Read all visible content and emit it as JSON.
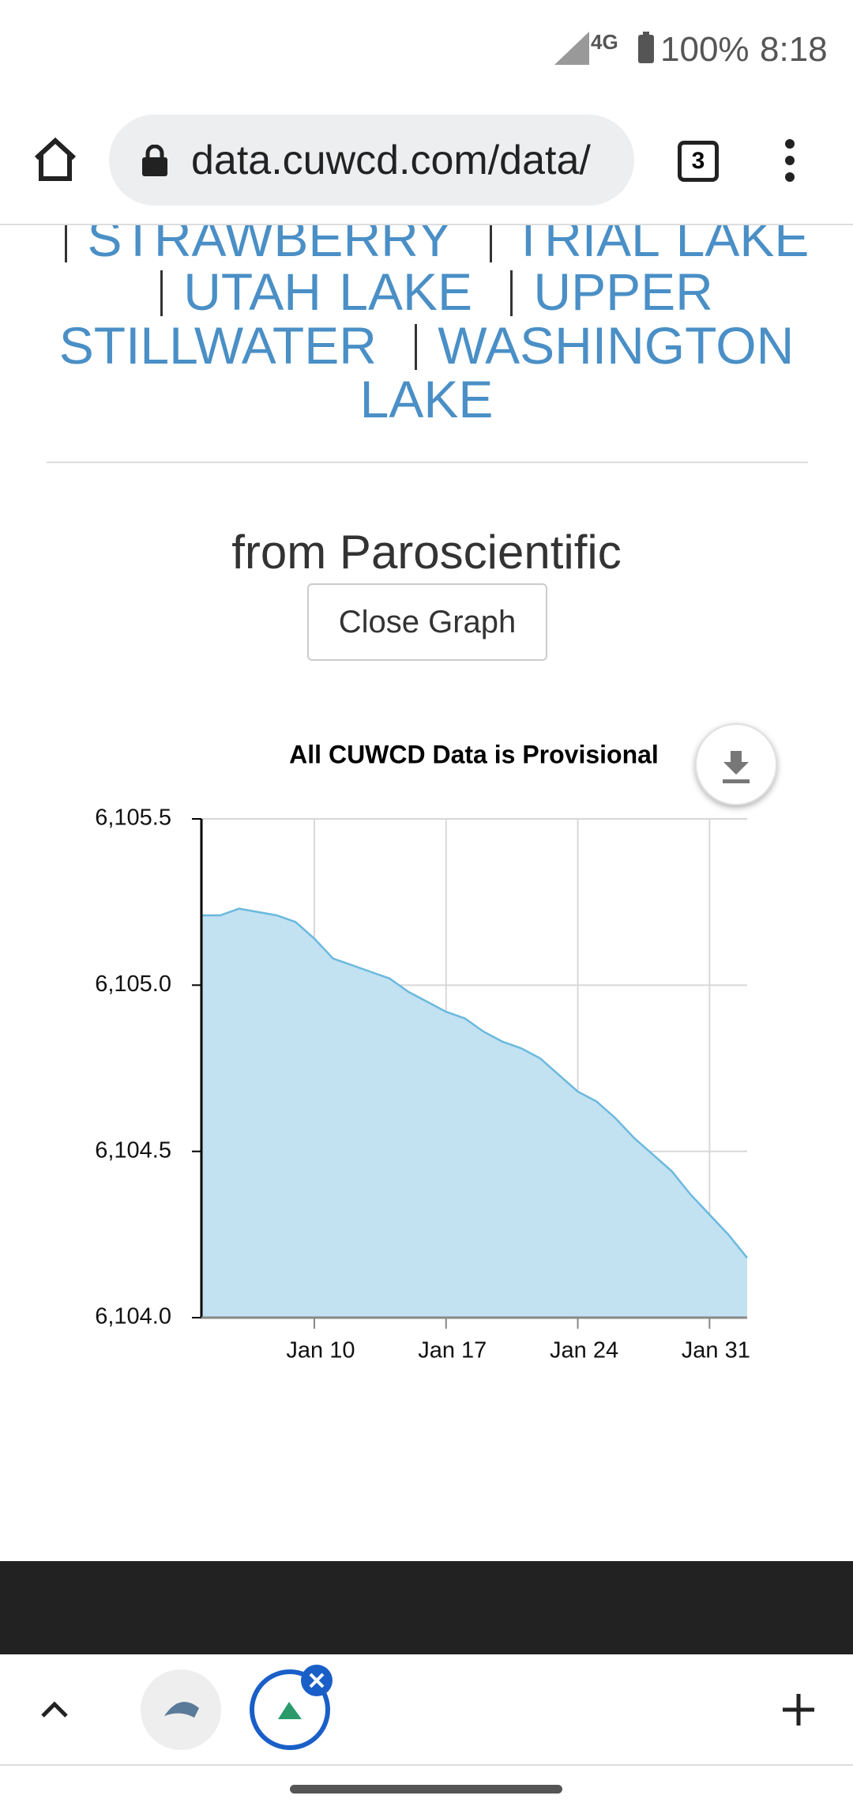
{
  "status_bar": {
    "network": "4G",
    "battery": "100%",
    "time": "8:18"
  },
  "browser": {
    "url": "data.cuwcd.com/data/",
    "tab_count": "3"
  },
  "links": [
    "STRAWBERRY",
    "TRIAL LAKE",
    "UTAH LAKE",
    "UPPER STILLWATER",
    "WASHINGTON LAKE"
  ],
  "heading": "from Paroscientific",
  "button": "Close Graph",
  "chart_data": {
    "type": "area",
    "title": "All CUWCD Data is Provisional",
    "x": [
      4,
      5,
      6,
      7,
      8,
      9,
      10,
      11,
      12,
      13,
      14,
      15,
      16,
      17,
      18,
      19,
      20,
      21,
      22,
      23,
      24,
      25,
      26,
      27,
      28,
      29,
      30,
      31,
      32,
      33
    ],
    "values": [
      6105.21,
      6105.21,
      6105.23,
      6105.22,
      6105.21,
      6105.19,
      6105.14,
      6105.08,
      6105.06,
      6105.04,
      6105.02,
      6104.98,
      6104.95,
      6104.92,
      6104.9,
      6104.86,
      6104.83,
      6104.81,
      6104.78,
      6104.73,
      6104.68,
      6104.65,
      6104.6,
      6104.54,
      6104.49,
      6104.44,
      6104.37,
      6104.31,
      6104.25,
      6104.18
    ],
    "xlim": [
      4,
      33
    ],
    "xticks": [
      {
        "value": 10,
        "label": "Jan 10"
      },
      {
        "value": 17,
        "label": "Jan 17"
      },
      {
        "value": 24,
        "label": "Jan 24"
      },
      {
        "value": 31,
        "label": "Jan 31"
      }
    ],
    "ylim": [
      6104,
      6105.5
    ],
    "yticks": [
      {
        "value": 6104,
        "label": "6,104.0"
      },
      {
        "value": 6104.5,
        "label": "6,104.5"
      },
      {
        "value": 6105,
        "label": "6,105.0"
      },
      {
        "value": 6105.5,
        "label": "6,105.5"
      }
    ],
    "color": "#6bb9de",
    "fill": "#c2e1f1",
    "grid": true
  }
}
